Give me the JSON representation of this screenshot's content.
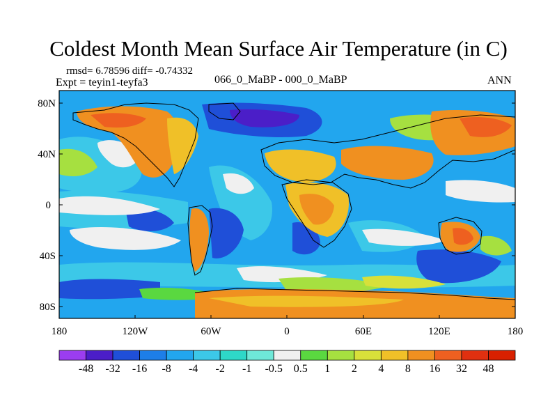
{
  "title": "Coldest Month Mean Surface Air Temperature (in C)",
  "stats_line": "rmsd= 6.78596 diff= -0.74332",
  "left_subtitle": "Expt = teyin1-teyfa3",
  "center_subtitle": "066_0_MaBP - 000_0_MaBP",
  "right_subtitle": "ANN",
  "latitude_labels": [
    "80N",
    "40N",
    "0",
    "40S",
    "80S"
  ],
  "longitude_labels": [
    "180",
    "120W",
    "60W",
    "0",
    "60E",
    "120E",
    "180"
  ],
  "colorbar": {
    "labels": [
      "-48",
      "-32",
      "-16",
      "-8",
      "-4",
      "-2",
      "-1",
      "-0.5",
      "0.5",
      "1",
      "2",
      "4",
      "8",
      "16",
      "32",
      "48"
    ],
    "colors": [
      "#9b3df0",
      "#4b1ec8",
      "#1f4fd8",
      "#1d7ee8",
      "#22a6ee",
      "#3cc8e8",
      "#2ed8c8",
      "#6ee8d8",
      "#f0f0f0",
      "#5ad840",
      "#a6e040",
      "#d8e03a",
      "#f0c028",
      "#f09020",
      "#ee6020",
      "#e03010",
      "#d82000"
    ]
  },
  "map_palette": {
    "ocean_blue": "#22a6ee",
    "deep_blue": "#1f4fd8",
    "violet_blue": "#4b1ec8",
    "cyan": "#3cc8e8",
    "white": "#f0f0f0",
    "green": "#5ad840",
    "yellow_green": "#a6e040",
    "yellow": "#d8e03a",
    "gold": "#f0c028",
    "orange": "#f09020",
    "red_orange": "#ee6020",
    "coast": "#000000"
  }
}
